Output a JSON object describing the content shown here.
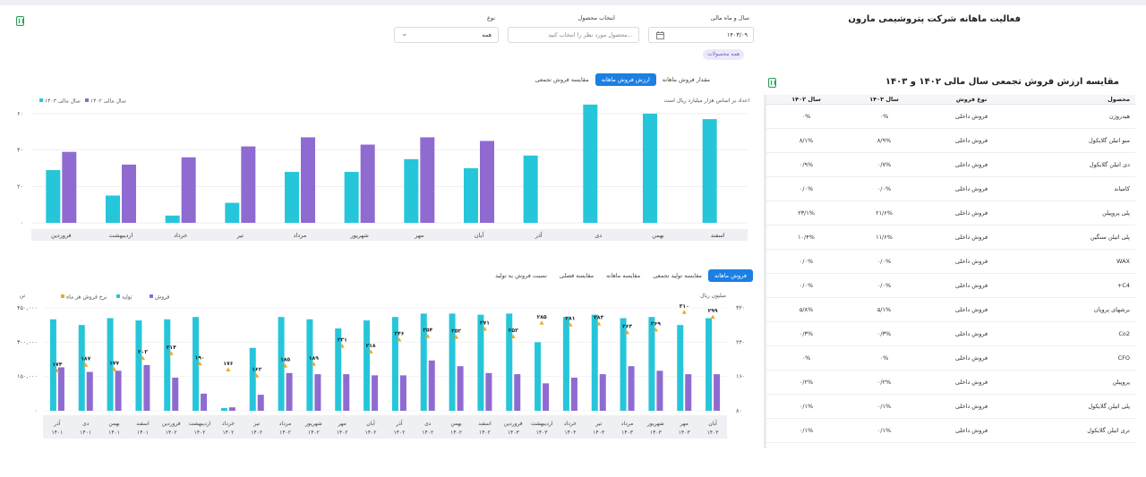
{
  "page": {
    "title": "فعالیت ماهانه شرکت پتروشیمی مارون"
  },
  "filters": {
    "fiscal_label": "سال و ماه مالی",
    "fiscal_value": "۱۴۰۳/۰۹",
    "product_label": "انتخاب محصول",
    "product_placeholder": "محصول مورد نظر را انتخاب کنید...",
    "type_label": "نوع",
    "type_value": "همه",
    "chip": "همه محصولات"
  },
  "top_chart": {
    "tabs": [
      "مقدار فروش ماهانه",
      "ارزش فروش ماهانه",
      "مقایسه فروش تجمعی"
    ],
    "active_tab": 1,
    "note": "اعداد بر اساس هزار میلیارد ریال است",
    "colors": {
      "y1402": "#8f6bd1",
      "y1403": "#26c6da"
    }
  },
  "bottom_chart": {
    "tabs": [
      "فروش ماهانه",
      "مقایسه تولید تجمعی",
      "مقایسه ماهانه",
      "مقایسه فصلی",
      "نسبت فروش به تولید"
    ],
    "active_tab": 0,
    "right_axis_title": "میلیون ریال",
    "left_axis_title": "تن",
    "colors": {
      "sales": "#8f6bd1",
      "production": "#26c6da",
      "rate": "#f5a623"
    }
  },
  "table": {
    "title": "مقایسه ارزش فروش تجمعی سال مالی ۱۴۰۲ و ۱۴۰۳",
    "headers": {
      "product": "محصول",
      "type": "نوع فروش",
      "y1403": "سال ۱۴۰۳",
      "y1402": "سال ۱۴۰۲"
    },
    "rows": [
      {
        "product": "هیدروژن",
        "type": "فروش داخلی",
        "y1403": "۰%",
        "y1402": "۰%"
      },
      {
        "product": "منو اتیلن گلایکول",
        "type": "فروش داخلی",
        "y1403": "۸/۹%",
        "y1402": "۸/۱%"
      },
      {
        "product": "دی اتیلن گلایکول",
        "type": "فروش داخلی",
        "y1403": "۰/۷%",
        "y1402": "۰/۹%"
      },
      {
        "product": "کامیاند",
        "type": "فروش داخلی",
        "y1403": "۰/۰%",
        "y1402": "۰/۰%"
      },
      {
        "product": "پلی پروپیلن",
        "type": "فروش داخلی",
        "y1403": "۲۱/۶%",
        "y1402": "۲۳/۱%"
      },
      {
        "product": "پلی اتیلن سنگین",
        "type": "فروش داخلی",
        "y1403": "۱۱/۶%",
        "y1402": "۱۰/۴%"
      },
      {
        "product": "WAX",
        "type": "فروش داخلی",
        "y1403": "۰/۰%",
        "y1402": "۰/۰%"
      },
      {
        "product": "C4+",
        "type": "فروش داخلی",
        "y1403": "۰/۰%",
        "y1402": "۰/۰%"
      },
      {
        "product": "برشهای پروپان",
        "type": "فروش داخلی",
        "y1403": "۵/۱%",
        "y1402": "۵/۸%"
      },
      {
        "product": "Co2",
        "type": "فروش داخلی",
        "y1403": "۰/۳%",
        "y1402": "۰/۳%"
      },
      {
        "product": "CFO",
        "type": "فروش داخلی",
        "y1403": "۰%",
        "y1402": "۰%"
      },
      {
        "product": "پروپیلن",
        "type": "فروش داخلی",
        "y1403": "۰/۲%",
        "y1402": "۰/۲%"
      },
      {
        "product": "پلی اتیلن گلایکول",
        "type": "فروش داخلی",
        "y1403": "۰/۱%",
        "y1402": "۰/۱%"
      },
      {
        "product": "تری اتیلن گلایکول",
        "type": "فروش داخلی",
        "y1403": "۰/۱%",
        "y1402": "۰/۱%"
      }
    ]
  },
  "chart_data": [
    {
      "type": "bar",
      "categories": [
        "فروردین",
        "اردیبهشت",
        "خرداد",
        "تیر",
        "مرداد",
        "شهریور",
        "مهر",
        "آبان",
        "آذر",
        "دی",
        "بهمن",
        "اسفند"
      ],
      "series": [
        {
          "name": "سال مالی ۱۴۰۳",
          "values": [
            29,
            15,
            4,
            11,
            28,
            28,
            35,
            30,
            37,
            65,
            60,
            57
          ]
        },
        {
          "name": "سال مالی ۱۴۰۲",
          "values": [
            39,
            32,
            36,
            42,
            47,
            43,
            47,
            45,
            null,
            null,
            null,
            null
          ]
        }
      ],
      "y_tick_labels": [
        "۰",
        "۲۰",
        "۴۰",
        "۶۰"
      ],
      "ylim": [
        0,
        60
      ],
      "grid": true,
      "legend": "top-left"
    },
    {
      "type": "bar",
      "categories": [
        "آذر ۱۴۰۱",
        "دی ۱۴۰۱",
        "بهمن ۱۴۰۱",
        "اسفند ۱۴۰۱",
        "فروردین ۱۴۰۲",
        "اردیبهشت ۱۴۰۲",
        "خرداد ۱۴۰۲",
        "تیر ۱۴۰۲",
        "مرداد ۱۴۰۲",
        "شهریور ۱۴۰۲",
        "مهر ۱۴۰۲",
        "آبان ۱۴۰۲",
        "آذر ۱۴۰۲",
        "دی ۱۴۰۲",
        "بهمن ۱۴۰۲",
        "اسفند ۱۴۰۲",
        "فروردین ۱۴۰۳",
        "اردیبهشت ۱۴۰۳",
        "خرداد ۱۴۰۳",
        "تیر ۱۴۰۳",
        "مرداد ۱۴۰۳",
        "شهریور ۱۴۰۳",
        "مهر ۱۴۰۳",
        "آبان ۱۴۰۳"
      ],
      "series": [
        {
          "name": "تولید",
          "values": [
            400000,
            375000,
            405000,
            395000,
            400000,
            410000,
            12000,
            275000,
            410000,
            400000,
            360000,
            395000,
            410000,
            425000,
            425000,
            420000,
            425000,
            300000,
            410000,
            420000,
            405000,
            410000,
            375000,
            405000
          ]
        },
        {
          "name": "فروش",
          "values": [
            190000,
            170000,
            175000,
            200000,
            145000,
            75000,
            15000,
            70000,
            165000,
            160000,
            160000,
            155000,
            155000,
            220000,
            195000,
            165000,
            160000,
            120000,
            145000,
            160000,
            195000,
            175000,
            160000,
            160000
          ]
        },
        {
          "name": "نرخ فروش هر ماه",
          "axis": "right",
          "values": [
            174,
            187,
            177,
            203,
            214,
            190,
            176,
            162,
            185,
            189,
            231,
            218,
            246,
            254,
            252,
            271,
            253,
            285,
            281,
            283,
            263,
            269,
            310,
            299
          ]
        }
      ],
      "left_tick_labels": [
        "۰",
        "۱۵۰,۰۰۰",
        "۳۰۰,۰۰۰",
        "۴۵۰,۰۰۰"
      ],
      "right_tick_labels": [
        "۸۰",
        "۱۶۰",
        "۲۴۰",
        "۳۲۰"
      ],
      "left_ylim": [
        0,
        450000
      ],
      "right_ylim": [
        80,
        320
      ],
      "value_labels": [
        "۱۷۴",
        "۱۸۷",
        "۱۷۷",
        "۲۰۳",
        "۲۱۴",
        "۱۹۰",
        "۱۷۶",
        "۱۶۲",
        "۱۸۵",
        "۱۸۹",
        "۲۳۱",
        "۲۱۸",
        "۲۴۶",
        "۲۵۴",
        "۲۵۲",
        "۲۷۱",
        "۲۵۳",
        "۲۸۵",
        "۲۸۱",
        "۲۸۳",
        "۲۶۳",
        "۲۶۹",
        "۳۱۰",
        "۲۹۹"
      ],
      "legend": "top-left"
    }
  ]
}
